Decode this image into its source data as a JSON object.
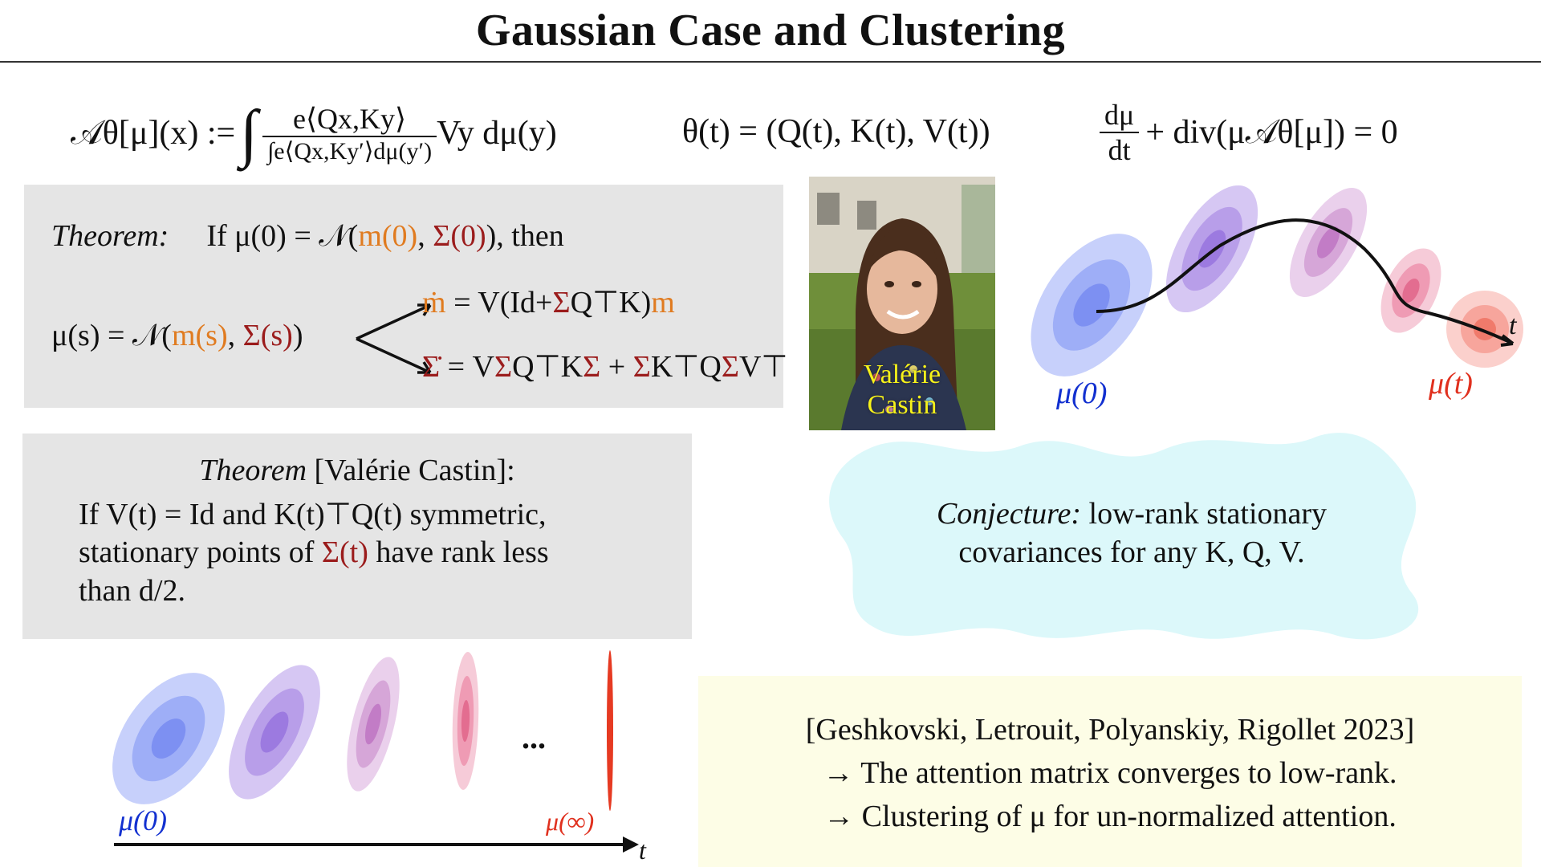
{
  "title": "Gaussian Case and Clustering",
  "equations": {
    "attention_lhs": "𝒜θ[μ](x) :=",
    "attention_num": "e⟨Qx,Ky⟩",
    "attention_den": "∫e⟨Qx,Ky′⟩dμ(y′)",
    "attention_tail": "Vy dμ(y)",
    "theta": "θ(t) = (Q(t), K(t), V(t))",
    "continuity_num": "dμ",
    "continuity_den": "dt",
    "continuity_tail": "+ div(μ𝒜θ[μ]) = 0"
  },
  "theorem1": {
    "label": "Theorem:",
    "text_pre": "If μ(0) = 𝒩(",
    "m0": "m(0)",
    "comma": ", ",
    "sigma0": "Σ(0)",
    "text_post": "), then",
    "mus_pre": "μ(s) = 𝒩(",
    "ms": "m(s)",
    "mus_comma": ", ",
    "sigmas": "Σ(s)",
    "mus_post": ")",
    "mdot_lhs": "ṁ",
    "mdot_eq": " = V(Id+",
    "mdot_sigma": "Σ",
    "mdot_mid": "Q⊤K)",
    "mdot_m": "m",
    "sdot_lhs": "Σ̇",
    "sdot_eq": " = V",
    "sdot_s1": "Σ",
    "sdot_mid1": "Q⊤K",
    "sdot_s2": "Σ",
    "sdot_plus": " + ",
    "sdot_s3": "Σ",
    "sdot_mid2": "K⊤Q",
    "sdot_s4": "Σ",
    "sdot_end": "V⊤"
  },
  "photo": {
    "caption_line1": "Valérie",
    "caption_line2": "Castin"
  },
  "flow_figure": {
    "start_label": "μ(0)",
    "end_label": "μ(t)",
    "axis_label": "t"
  },
  "theorem2": {
    "title_italic": "Theorem",
    "title_rest": " [Valérie Castin]:",
    "line1": "If V(t) = Id and K(t)⊤Q(t) symmetric,",
    "line2_pre": "stationary points of ",
    "line2_sigma": "Σ(t)",
    "line2_post": " have rank less",
    "line3": "than d/2."
  },
  "conjecture": {
    "label": "Conjecture:",
    "line1": " low-rank stationary",
    "line2": "covariances for any K, Q, V."
  },
  "collapse_figure": {
    "start_label": "μ(0)",
    "ellipsis": "...",
    "end_label": "μ(∞)",
    "axis_label": "t"
  },
  "reference": {
    "line1": "[Geshkovski, Letrouit, Polyanskiy, Rigollet 2023]",
    "line2": "→ The attention matrix converges to low-rank.",
    "line3": "→ Clustering of μ for un-normalized attention."
  },
  "colors": {
    "orange": "#e07b20",
    "darkred": "#9b1c1c",
    "blue": "#1230d0",
    "red": "#e0301e",
    "gray_box": "#e5e5e5",
    "yellow_box": "#fdfde6",
    "cloud": "#dcf8fa"
  }
}
